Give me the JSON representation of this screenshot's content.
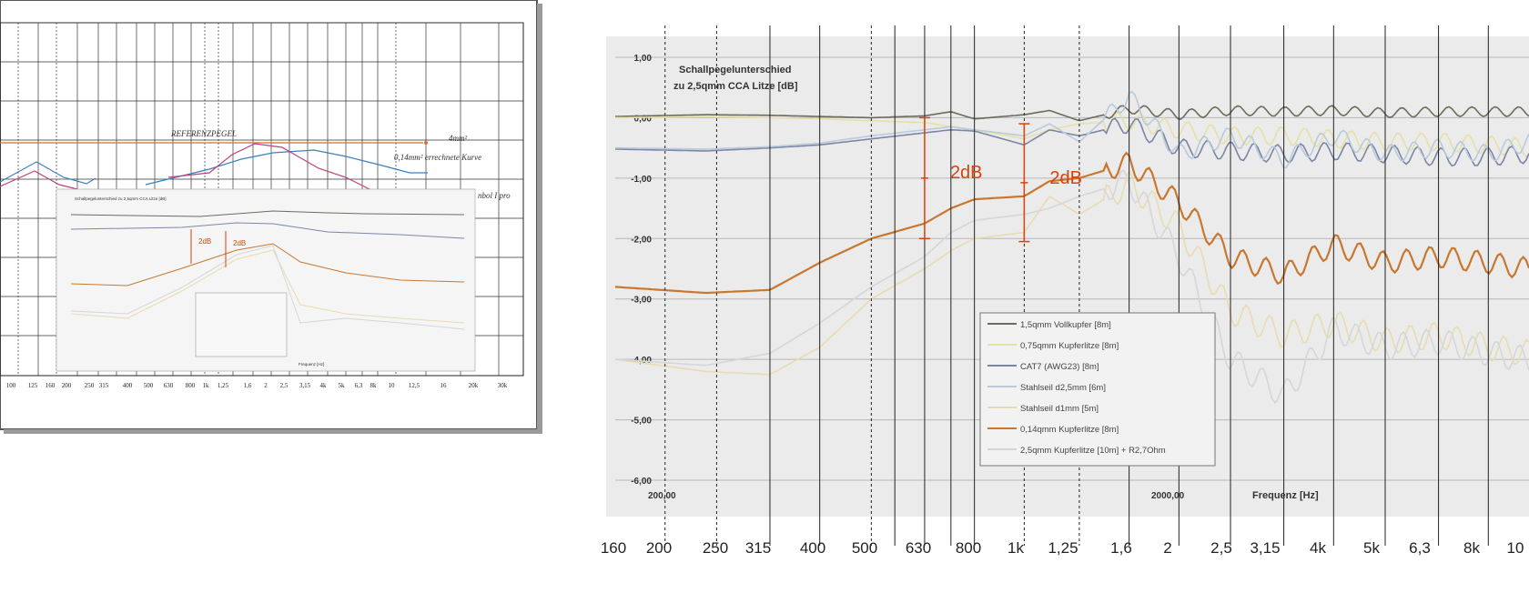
{
  "left_chart": {
    "ref_label": "REFERENZPEGEL",
    "mm4_label": "4mm²",
    "curve_label": "0,14mm² errechnete Kurve",
    "partial_label": "nbol I pro",
    "bottom_ticks": [
      "100",
      "125",
      "160",
      "200",
      "250",
      "315",
      "400",
      "500",
      "630",
      "800",
      "1k",
      "1,25",
      "1,6",
      "2",
      "2,5",
      "3,15",
      "4k",
      "5k",
      "6,3",
      "8k",
      "10",
      "12,5",
      "16",
      "20k",
      "30k"
    ],
    "inset": {
      "title": "Schallpegelunterschied zu 2,5qmm CCA Litze [dB]",
      "xlabel": "Frequenz [Hz]",
      "annotations": [
        "2dB",
        "2dB"
      ]
    }
  },
  "chart_data": {
    "type": "line",
    "title": "Schallpegelunterschied\nzu 2,5qmm CCA Litze [dB]",
    "title_lines": [
      "Schallpegelunterschied",
      "zu 2,5qmm CCA Litze [dB]"
    ],
    "xlabel": "Frequenz [Hz]",
    "ylabel": "",
    "x_scale": "log",
    "xlim": [
      200,
      12000
    ],
    "ylim": [
      -6,
      1
    ],
    "y_ticks": [
      "1,00",
      "0,00",
      "-1,00",
      "-2,00",
      "-3,00",
      "-4,00",
      "-5,00",
      "-6,00"
    ],
    "x_tick_labels_inner": [
      "200,00",
      "2000,00"
    ],
    "bottom_ticks": [
      "160",
      "200",
      "250",
      "315",
      "400",
      "500",
      "630",
      "800",
      "1k",
      "1,25",
      "1,6",
      "2",
      "2,5",
      "3,15",
      "4k",
      "5k",
      "6,3",
      "8k",
      "10"
    ],
    "annotations": [
      {
        "text": "2dB",
        "x": 800,
        "from": 0.0,
        "to": -2.0,
        "color": "#d9420b"
      },
      {
        "text": "2dB",
        "x": 1250,
        "from": -0.1,
        "to": -2.05,
        "color": "#d9420b"
      }
    ],
    "legend_position": "bottom-center",
    "series": [
      {
        "name": "1,5qmm Vollkupfer [8m]",
        "color": "#6b6b5e",
        "x": [
          200,
          300,
          400,
          500,
          630,
          800,
          900,
          1000,
          1250,
          1400,
          1600,
          2000,
          2500,
          3150,
          4000,
          5000,
          6300,
          8000,
          10000,
          12000
        ],
        "y": [
          0.02,
          0.05,
          0.04,
          0.02,
          0.0,
          0.03,
          0.1,
          -0.02,
          0.05,
          0.12,
          -0.05,
          0.15,
          0.05,
          0.12,
          0.1,
          0.12,
          0.08,
          0.1,
          0.1,
          0.1
        ]
      },
      {
        "name": "0,75qmm Kupferlitze [8m]",
        "color": "#e6e0a8",
        "x": [
          200,
          300,
          400,
          500,
          630,
          800,
          900,
          1000,
          1250,
          1400,
          1600,
          2000,
          2500,
          3150,
          4000,
          5000,
          6300,
          8000,
          10000,
          12000
        ],
        "y": [
          0.0,
          0.02,
          0.0,
          -0.02,
          -0.05,
          -0.08,
          -0.15,
          -0.2,
          -0.35,
          -0.2,
          -0.1,
          -0.05,
          -0.2,
          -0.3,
          -0.3,
          -0.35,
          -0.4,
          -0.4,
          -0.45,
          -0.5
        ]
      },
      {
        "name": "CAT7 (AWG23) [8m]",
        "color": "#7b86a6",
        "x": [
          200,
          300,
          400,
          500,
          630,
          800,
          900,
          1000,
          1250,
          1400,
          1600,
          2000,
          2500,
          3150,
          4000,
          5000,
          6300,
          8000,
          10000,
          12000
        ],
        "y": [
          -0.52,
          -0.55,
          -0.5,
          -0.45,
          -0.35,
          -0.25,
          -0.2,
          -0.22,
          -0.45,
          -0.2,
          -0.3,
          -0.1,
          -0.5,
          -0.55,
          -0.6,
          -0.55,
          -0.6,
          -0.65,
          -0.65,
          -0.6
        ]
      },
      {
        "name": "Stahlseil d2,5mm [6m]",
        "color": "#b9cadb",
        "x": [
          200,
          300,
          400,
          500,
          630,
          800,
          900,
          1000,
          1250,
          1400,
          1600,
          2000,
          2500,
          3150,
          4000,
          5000,
          6300,
          8000,
          10000,
          12000
        ],
        "y": [
          -0.5,
          -0.52,
          -0.48,
          -0.42,
          -0.3,
          -0.2,
          -0.15,
          -0.2,
          -0.3,
          -0.1,
          -0.4,
          0.35,
          -0.6,
          -0.3,
          -0.7,
          -0.3,
          -0.6,
          -0.5,
          -0.6,
          -0.4
        ]
      },
      {
        "name": "Stahlseil d1mm [5m]",
        "color": "#e8dbb0",
        "x": [
          200,
          300,
          400,
          500,
          630,
          800,
          900,
          1000,
          1250,
          1400,
          1600,
          2000,
          2500,
          3150,
          4000,
          5000,
          6300,
          8000,
          10000,
          12000
        ],
        "y": [
          -4.0,
          -4.2,
          -4.25,
          -3.8,
          -3.0,
          -2.5,
          -2.2,
          -2.0,
          -1.9,
          -1.3,
          -1.6,
          -1.1,
          -1.8,
          -3.2,
          -3.6,
          -3.4,
          -3.7,
          -3.6,
          -3.8,
          -3.9
        ]
      },
      {
        "name": "0,14qmm Kupferlitze [8m]",
        "color": "#c8772e",
        "x": [
          200,
          300,
          400,
          500,
          630,
          800,
          900,
          1000,
          1250,
          1400,
          1600,
          2000,
          2500,
          3150,
          4000,
          5000,
          6300,
          8000,
          10000,
          12000
        ],
        "y": [
          -2.8,
          -2.9,
          -2.85,
          -2.4,
          -2.0,
          -1.75,
          -1.5,
          -1.35,
          -1.3,
          -1.05,
          -1.0,
          -0.75,
          -1.4,
          -2.3,
          -2.6,
          -2.1,
          -2.4,
          -2.3,
          -2.4,
          -2.5
        ]
      },
      {
        "name": "2,5qmm Kupferlitze [10m] + R2,7Ohm",
        "color": "#d4d6d8",
        "x": [
          200,
          300,
          400,
          500,
          630,
          800,
          900,
          1000,
          1250,
          1400,
          1600,
          2000,
          2500,
          3150,
          4000,
          5000,
          6300,
          8000,
          10000,
          12000
        ],
        "y": [
          -4.0,
          -4.1,
          -3.9,
          -3.4,
          -2.8,
          -2.3,
          -1.9,
          -1.7,
          -1.6,
          -1.5,
          -1.3,
          -1.05,
          -2.3,
          -4.0,
          -4.6,
          -3.5,
          -3.8,
          -3.7,
          -3.9,
          -4.0
        ]
      }
    ]
  }
}
